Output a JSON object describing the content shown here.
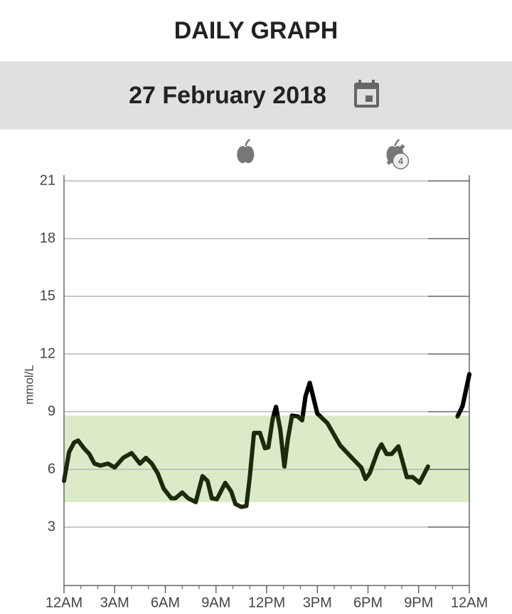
{
  "header": {
    "title": "DAILY GRAPH",
    "date": "27 February 2018"
  },
  "chart_data": {
    "type": "line",
    "ylabel": "mmol/L",
    "xlim": [
      0,
      24
    ],
    "xticks": [
      {
        "value": 0,
        "label": "12AM"
      },
      {
        "value": 3,
        "label": "3AM"
      },
      {
        "value": 6,
        "label": "6AM"
      },
      {
        "value": 9,
        "label": "9AM"
      },
      {
        "value": 12,
        "label": "12PM"
      },
      {
        "value": 15,
        "label": "3PM"
      },
      {
        "value": 18,
        "label": "6PM"
      },
      {
        "value": 21,
        "label": "9PM"
      },
      {
        "value": 24,
        "label": "12AM"
      }
    ],
    "ylim": [
      0,
      21
    ],
    "yticks": [
      3,
      6,
      9,
      12,
      15,
      18,
      21
    ],
    "grid": true,
    "target_range": [
      4.3,
      8.8
    ],
    "target_color": "#dcebc7",
    "color": "#1e2a0c",
    "high_color": "#000000",
    "x": [
      0,
      0.3,
      0.6,
      0.84,
      1.18,
      1.5,
      1.8,
      2.15,
      2.6,
      3.0,
      3.5,
      4.0,
      4.5,
      4.85,
      5.2,
      5.55,
      5.9,
      6.35,
      6.6,
      7.0,
      7.35,
      7.8,
      8.2,
      8.5,
      8.75,
      9.05,
      9.55,
      9.9,
      10.15,
      10.5,
      10.8,
      11.0,
      11.25,
      11.6,
      11.9,
      12.1,
      12.35,
      12.55,
      12.8,
      13.05,
      13.25,
      13.5,
      13.85,
      14.1,
      14.3,
      14.55,
      15.0,
      15.6,
      16.35,
      17.05,
      17.6,
      17.85,
      18.1,
      18.6,
      18.8,
      19.1,
      19.4,
      19.8,
      20.3,
      20.65,
      21.05,
      21.55,
      22.5,
      23.3,
      23.6,
      24.0
    ],
    "values": [
      5.4,
      6.9,
      7.4,
      7.5,
      7.1,
      6.8,
      6.3,
      6.2,
      6.3,
      6.1,
      6.6,
      6.85,
      6.3,
      6.6,
      6.3,
      5.8,
      5.0,
      4.5,
      4.5,
      4.8,
      4.5,
      4.3,
      5.65,
      5.4,
      4.5,
      4.45,
      5.3,
      4.85,
      4.2,
      4.05,
      4.1,
      5.6,
      7.9,
      7.9,
      7.1,
      7.15,
      8.6,
      9.25,
      8.1,
      6.15,
      7.55,
      8.8,
      8.75,
      8.55,
      9.8,
      10.5,
      8.9,
      8.4,
      7.25,
      6.6,
      6.1,
      5.5,
      5.8,
      7.0,
      7.3,
      6.8,
      6.8,
      7.2,
      5.6,
      5.6,
      5.3,
      6.15,
      null,
      8.75,
      9.3,
      10.95
    ],
    "events": [
      {
        "x": 10.75
      },
      {
        "x": 19.6,
        "count": 4
      }
    ]
  }
}
